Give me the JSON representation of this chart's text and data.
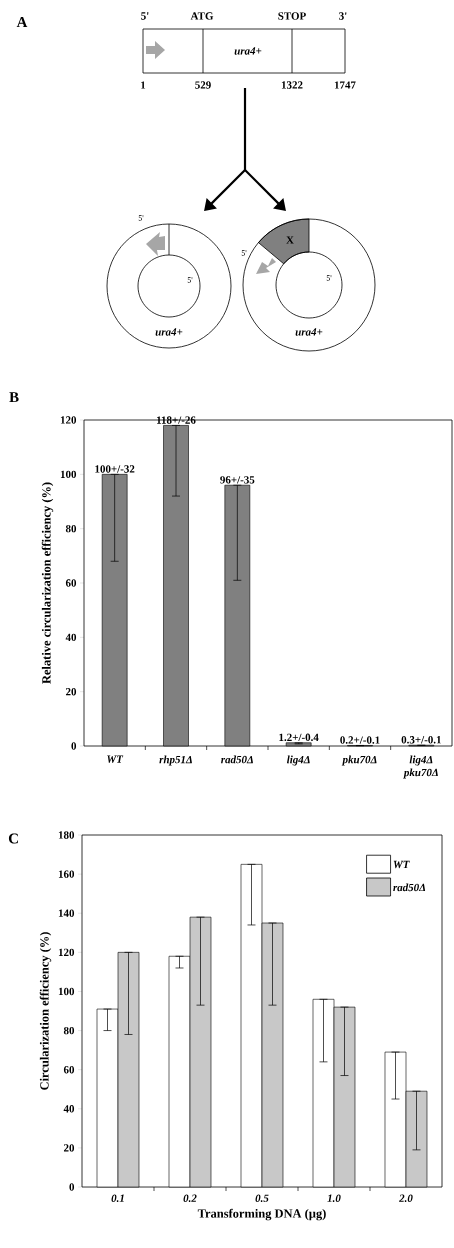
{
  "chart_data": [
    {
      "type": "other",
      "annotations": [
        "A",
        "5'",
        "ATG",
        "STOP",
        "3'",
        "ura4+",
        "1",
        "529",
        "1322",
        "1747",
        "5'",
        "5'",
        "ura4+",
        "X",
        "5'",
        "5'",
        "ura4+"
      ]
    },
    {
      "type": "bar",
      "title": "B",
      "ylabel": "Relative circularization efficiency (%)",
      "categories": [
        "WT",
        "rhp51Δ",
        "rad50Δ",
        "lig4Δ",
        "pku70Δ",
        "lig4Δ pku70Δ"
      ],
      "values": [
        100,
        118,
        96,
        1.2,
        0.2,
        0.3
      ],
      "color": "#808080",
      "errors": [
        [
          68,
          100
        ],
        [
          92,
          118
        ],
        [
          61,
          96
        ],
        [
          0.8,
          1.2
        ],
        [
          0.1,
          0.2
        ],
        [
          0.2,
          0.3
        ]
      ],
      "value_labels": [
        "100+/-32",
        "118+/-26",
        "96+/-35",
        "1.2+/-0.4",
        "0.2+/-0.1",
        "0.3+/-0.1"
      ],
      "ylim": [
        0,
        120
      ],
      "yticks": [
        0,
        20,
        40,
        60,
        80,
        100,
        120
      ],
      "grid": false
    },
    {
      "type": "bar",
      "title": "C",
      "xlabel": "Transforming DNA (µg)",
      "ylabel": "Circularization efficiency (%)",
      "categories": [
        "0.1",
        "0.2",
        "0.5",
        "1.0",
        "2.0"
      ],
      "series": [
        {
          "name": "WT",
          "color": "#ffffff",
          "values": [
            91,
            118,
            165,
            96,
            69
          ],
          "errors": [
            [
              80,
              91
            ],
            [
              112,
              118
            ],
            [
              134,
              165
            ],
            [
              64,
              96
            ],
            [
              45,
              69
            ]
          ]
        },
        {
          "name": "rad50Δ",
          "color": "#c8c8c8",
          "values": [
            120,
            138,
            135,
            92,
            49
          ],
          "errors": [
            [
              78,
              120
            ],
            [
              93,
              138
            ],
            [
              93,
              135
            ],
            [
              57,
              92
            ],
            [
              19,
              49
            ]
          ]
        }
      ],
      "ylim": [
        0,
        180
      ],
      "yticks": [
        0,
        20,
        40,
        60,
        80,
        100,
        120,
        140,
        160,
        180
      ],
      "legend": "top right",
      "grid": false
    }
  ]
}
